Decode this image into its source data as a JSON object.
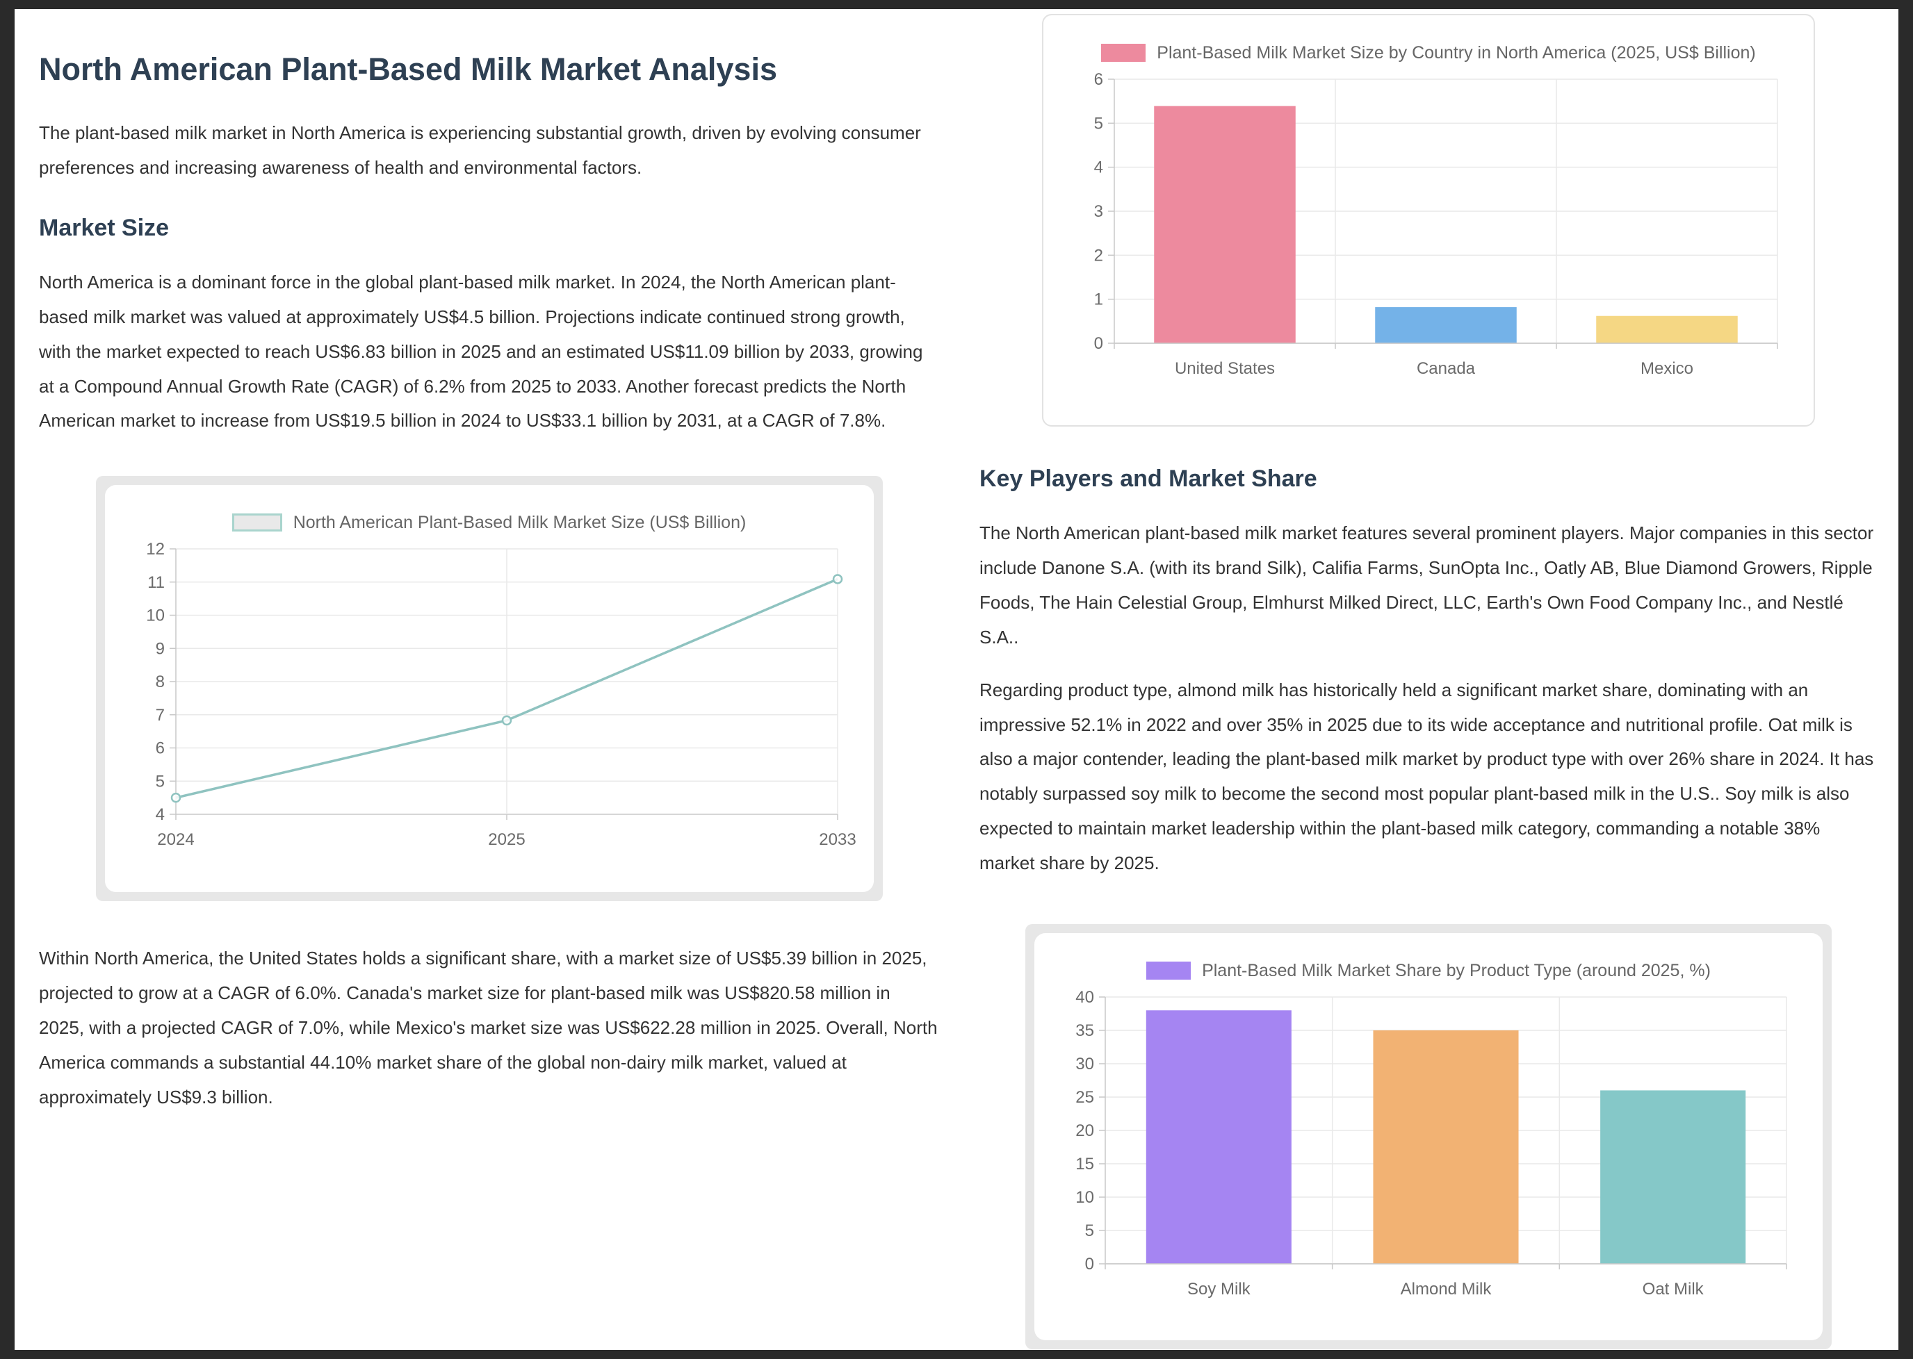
{
  "article": {
    "title": "North American Plant-Based Milk Market Analysis",
    "intro": "The plant-based milk market in North America is experiencing substantial growth, driven by evolving consumer preferences and increasing awareness of health and environmental factors.",
    "market_size": {
      "heading": "Market Size",
      "para1": "North America is a dominant force in the global plant-based milk market. In 2024, the North American plant-based milk market was valued at approximately US$4.5 billion. Projections indicate continued strong growth, with the market expected to reach US$6.83 billion in 2025 and an estimated US$11.09 billion by 2033, growing at a Compound Annual Growth Rate (CAGR) of 6.2% from 2025 to 2033. Another forecast predicts the North American market to increase from US$19.5 billion in 2024 to US$33.1 billion by 2031, at a CAGR of 7.8%.",
      "para2": "Within North America, the United States holds a significant share, with a market size of US$5.39 billion in 2025, projected to grow at a CAGR of 6.0%. Canada's market size for plant-based milk was US$820.58 million in 2025, with a projected CAGR of 7.0%, while Mexico's market size was US$622.28 million in 2025. Overall, North America commands a substantial 44.10% market share of the global non-dairy milk market, valued at approximately US$9.3 billion."
    },
    "key_players": {
      "heading": "Key Players and Market Share",
      "para1": "The North American plant-based milk market features several prominent players. Major companies in this sector include Danone S.A. (with its brand Silk), Califia Farms, SunOpta Inc., Oatly AB, Blue Diamond Growers, Ripple Foods, The Hain Celestial Group, Elmhurst Milked Direct, LLC, Earth's Own Food Company Inc., and Nestlé S.A..",
      "para2": "Regarding product type, almond milk has historically held a significant market share, dominating with an impressive 52.1% in 2022 and over 35% in 2025 due to its wide acceptance and nutritional profile. Oat milk is also a major contender, leading the plant-based milk market by product type with over 26% share in 2024. It has notably surpassed soy milk to become the second most popular plant-based milk in the U.S.. Soy milk is also expected to maintain market leadership within the plant-based milk category, commanding a notable 38% market share by 2025."
    }
  },
  "chart_data": [
    {
      "id": "market_size_line",
      "type": "line",
      "title": "North American Plant-Based Milk Market Size (US$ Billion)",
      "x": [
        "2024",
        "2025",
        "2033"
      ],
      "values": [
        4.5,
        6.83,
        11.09
      ],
      "ylim": [
        4,
        12
      ],
      "yticks": [
        4,
        5,
        6,
        7,
        8,
        9,
        10,
        11,
        12
      ],
      "grid": true,
      "legend_position": "top",
      "line_color": "#8fc3c0",
      "legend_fill": "#e9e9e9",
      "legend_border": "#a9d4cd"
    },
    {
      "id": "country_bar",
      "type": "bar",
      "title": "Plant-Based Milk Market Size by Country in North America (2025, US$ Billion)",
      "categories": [
        "United States",
        "Canada",
        "Mexico"
      ],
      "values": [
        5.39,
        0.82,
        0.62
      ],
      "ylim": [
        0,
        6
      ],
      "yticks": [
        0,
        1,
        2,
        3,
        4,
        5,
        6
      ],
      "grid": true,
      "legend_position": "top",
      "bar_colors": [
        "#ed8a9e",
        "#74b2e8",
        "#f5d784"
      ],
      "legend_color": "#ed8a9e"
    },
    {
      "id": "product_share_bar",
      "type": "bar",
      "title": "Plant-Based Milk Market Share by Product Type (around 2025, %)",
      "categories": [
        "Soy Milk",
        "Almond Milk",
        "Oat Milk"
      ],
      "values": [
        38,
        35,
        26
      ],
      "ylim": [
        0,
        40
      ],
      "yticks": [
        0,
        5,
        10,
        15,
        20,
        25,
        30,
        35,
        40
      ],
      "grid": true,
      "legend_position": "top",
      "bar_colors": [
        "#a585f2",
        "#f2b273",
        "#85c8c8"
      ],
      "legend_color": "#a585f2"
    }
  ],
  "colors": {
    "outer_background": "#2a2a2a",
    "page_background": "#ffffff",
    "heading_text": "#2e4053",
    "body_text": "#333333",
    "axis_text": "#6b6b6b",
    "grid_line": "#e9e9e9",
    "axis_line": "#c9c9c9",
    "chart_frame": "#e7e7e7",
    "card_border": "#e2e2e2"
  }
}
